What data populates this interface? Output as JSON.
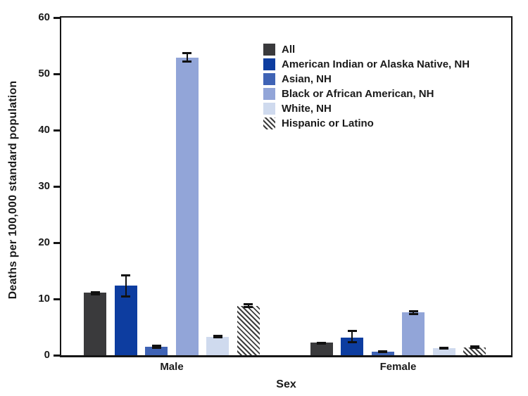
{
  "figure": {
    "background": "#ffffff",
    "axis_color": "#161616",
    "error_bar_color": "#111111"
  },
  "chart_data": {
    "type": "bar",
    "title": "",
    "xlabel": "Sex",
    "ylabel": "Deaths per 100,000 standard population",
    "ylim": [
      0,
      60
    ],
    "yticks": [
      0,
      10,
      20,
      30,
      40,
      50,
      60
    ],
    "grid": false,
    "error_bars": true,
    "legend_position": "inside-upper-right",
    "categories": [
      "Male",
      "Female"
    ],
    "series": [
      {
        "name": "All",
        "color": "#3a3a3c",
        "pattern": "solid",
        "values": [
          11.1,
          2.2
        ],
        "ci_low": [
          10.8,
          2.0
        ],
        "ci_high": [
          11.3,
          2.3
        ]
      },
      {
        "name": "American Indian or Alaska Native, NH",
        "color": "#0d3da0",
        "pattern": "solid",
        "values": [
          12.4,
          3.1
        ],
        "ci_low": [
          10.4,
          2.3
        ],
        "ci_high": [
          14.3,
          4.4
        ]
      },
      {
        "name": "Asian, NH",
        "color": "#3f63b5",
        "pattern": "solid",
        "values": [
          1.5,
          0.6
        ],
        "ci_low": [
          1.3,
          0.5
        ],
        "ci_high": [
          1.8,
          0.8
        ]
      },
      {
        "name": "Black or African American, NH",
        "color": "#92a5d8",
        "pattern": "solid",
        "values": [
          52.9,
          7.6
        ],
        "ci_low": [
          52.1,
          7.3
        ],
        "ci_high": [
          53.7,
          7.9
        ]
      },
      {
        "name": "White, NH",
        "color": "#cfdaee",
        "pattern": "solid",
        "values": [
          3.3,
          1.2
        ],
        "ci_low": [
          3.1,
          1.1
        ],
        "ci_high": [
          3.5,
          1.4
        ]
      },
      {
        "name": "Hispanic or Latino",
        "color": "#3d3d3d",
        "pattern": "hatch",
        "values": [
          8.8,
          1.4
        ],
        "ci_low": [
          8.5,
          1.2
        ],
        "ci_high": [
          9.1,
          1.6
        ]
      }
    ]
  }
}
